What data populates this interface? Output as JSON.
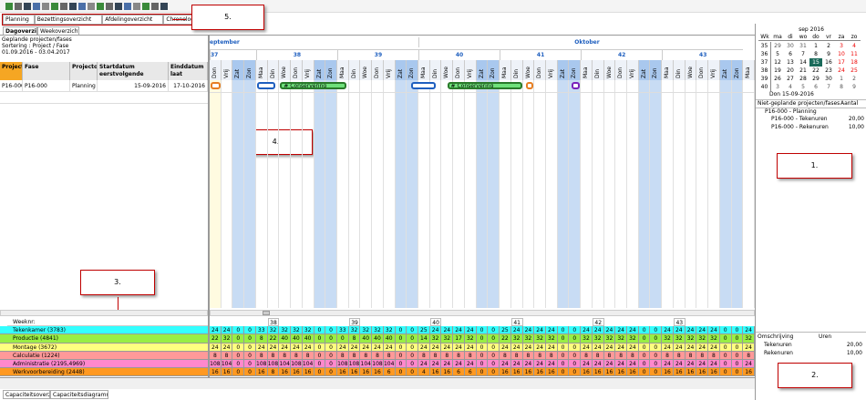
{
  "toolbar_tabs": [
    "Planning",
    "Bezettingsoverzicht",
    "Afdelingoverzicht",
    "Chronologisch overzicht"
  ],
  "annotations": [
    "5.",
    "4.",
    "3.",
    "1.",
    "2."
  ],
  "view_tabs": [
    "Dagoverzicht",
    "Weekoverzicht"
  ],
  "info": [
    "Geplande projecten/fases",
    "Sortering : Project / Fase",
    "01.09.2016 - 03.04.2017"
  ],
  "table": {
    "headers": [
      "Project",
      "Fase",
      "Projectom",
      "Startdatum eerstvolgende",
      "Einddatum laat"
    ],
    "rows": [
      [
        "P16-000",
        "P16-000",
        "Planning",
        "15-09-2016",
        "17-10-2016"
      ]
    ]
  },
  "months": [
    "eptember",
    "Oktober"
  ],
  "weeks": [
    "37",
    "38",
    "39",
    "40",
    "41",
    "42",
    "43"
  ],
  "days": [
    "Don",
    "Vrij",
    "Zat",
    "Zon",
    "Maa",
    "Din",
    "Woe",
    "Don",
    "Vrij",
    "Zat",
    "Zon",
    "Maa",
    "Din",
    "Woe",
    "Don",
    "Vrij",
    "Zat",
    "Zon",
    "Maa",
    "Din",
    "Woe",
    "Don",
    "Vrij",
    "Zat",
    "Zon",
    "Maa",
    "Din",
    "Woe",
    "Don",
    "Vrij",
    "Zat",
    "Zon",
    "Maa",
    "Din",
    "Woe",
    "Don",
    "Vrij",
    "Zat",
    "Zon",
    "Maa",
    "Din",
    "Woe",
    "Don",
    "Vrij",
    "Zat",
    "Zon",
    "Maa"
  ],
  "gantt_labels": [
    "# Conservering",
    "# Conservering"
  ],
  "capacity": {
    "weeknr_label": "Weeknr:",
    "rows": [
      {
        "name": "Tekenkamer (3783)",
        "color": "#33ffff",
        "values": [
          24,
          24,
          0,
          0,
          33,
          32,
          32,
          32,
          32,
          0,
          0,
          33,
          32,
          32,
          32,
          32,
          0,
          0,
          25,
          24,
          24,
          24,
          24,
          0,
          0,
          25,
          24,
          24,
          24,
          24,
          0,
          0,
          24,
          24,
          24,
          24,
          24,
          0,
          0,
          24,
          24,
          24,
          24,
          24,
          0,
          0,
          24
        ]
      },
      {
        "name": "Productie (4841)",
        "color": "#99ee44",
        "values": [
          22,
          32,
          0,
          0,
          8,
          22,
          40,
          40,
          40,
          0,
          0,
          0,
          8,
          40,
          40,
          40,
          0,
          0,
          14,
          32,
          32,
          17,
          32,
          0,
          0,
          22,
          32,
          32,
          32,
          32,
          0,
          0,
          32,
          32,
          32,
          32,
          32,
          0,
          0,
          32,
          32,
          32,
          32,
          32,
          0,
          0,
          32
        ]
      },
      {
        "name": "Montage (3672)",
        "color": "#ffff80",
        "values": [
          24,
          24,
          0,
          0,
          24,
          24,
          24,
          24,
          24,
          0,
          0,
          24,
          24,
          24,
          24,
          24,
          0,
          0,
          24,
          24,
          24,
          24,
          24,
          0,
          0,
          24,
          24,
          24,
          24,
          24,
          0,
          0,
          24,
          24,
          24,
          24,
          24,
          0,
          0,
          24,
          24,
          24,
          24,
          24,
          0,
          0,
          24
        ]
      },
      {
        "name": "Calculatie (1224)",
        "color": "#ff9999",
        "values": [
          8,
          8,
          0,
          0,
          8,
          8,
          8,
          8,
          8,
          0,
          0,
          8,
          8,
          8,
          8,
          8,
          0,
          0,
          8,
          8,
          8,
          8,
          8,
          0,
          0,
          8,
          8,
          8,
          8,
          8,
          0,
          0,
          8,
          8,
          8,
          8,
          8,
          0,
          0,
          8,
          8,
          8,
          8,
          8,
          0,
          0,
          8
        ]
      },
      {
        "name": "Administratie (2195,4969)",
        "color": "#ff88cc",
        "values": [
          108,
          104,
          0,
          0,
          108,
          108,
          104,
          108,
          104,
          0,
          0,
          108,
          108,
          104,
          108,
          104,
          0,
          0,
          24,
          24,
          24,
          24,
          24,
          0,
          0,
          24,
          24,
          24,
          24,
          24,
          0,
          0,
          24,
          24,
          24,
          24,
          24,
          0,
          0,
          24,
          24,
          24,
          24,
          24,
          0,
          0,
          24
        ]
      },
      {
        "name": "Werkvoorbereiding (2448)",
        "color": "#ff9922",
        "values": [
          16,
          16,
          0,
          0,
          16,
          8,
          16,
          16,
          16,
          0,
          0,
          16,
          16,
          16,
          16,
          6,
          0,
          0,
          4,
          16,
          16,
          6,
          6,
          0,
          0,
          16,
          16,
          16,
          16,
          16,
          0,
          0,
          16,
          16,
          16,
          16,
          16,
          0,
          0,
          16,
          16,
          16,
          16,
          16,
          0,
          0,
          16
        ]
      }
    ]
  },
  "bottom_tabs": [
    "Capaciteitsoverzicht",
    "Capaciteitsdiagrammen"
  ],
  "calendar": {
    "title": "sep 2016",
    "headers": [
      "Wk",
      "ma",
      "di",
      "wo",
      "do",
      "vr",
      "za",
      "zo"
    ],
    "rows": [
      [
        35,
        29,
        30,
        31,
        1,
        2,
        3,
        4
      ],
      [
        36,
        5,
        6,
        7,
        8,
        9,
        10,
        11
      ],
      [
        37,
        12,
        13,
        14,
        15,
        16,
        17,
        18
      ],
      [
        38,
        19,
        20,
        21,
        22,
        23,
        24,
        25
      ],
      [
        39,
        26,
        27,
        28,
        29,
        30,
        1,
        2
      ],
      [
        40,
        3,
        4,
        5,
        6,
        7,
        8,
        9
      ]
    ],
    "footer": "Don 15-09-2016"
  },
  "unplanned": {
    "headers": [
      "Niet-geplande projecten/fases",
      "Aantal"
    ],
    "group": "P16-000 - Planning",
    "items": [
      [
        "P16-000 - Tekenuren",
        "20,00"
      ],
      [
        "P16-000 - Rekenuren",
        "10,00"
      ]
    ]
  },
  "hours": {
    "headers": [
      "Omschrijving",
      "Uren"
    ],
    "rows": [
      [
        "Tekenuren",
        "20,00"
      ],
      [
        "Rekenuren",
        "10,00"
      ]
    ]
  }
}
